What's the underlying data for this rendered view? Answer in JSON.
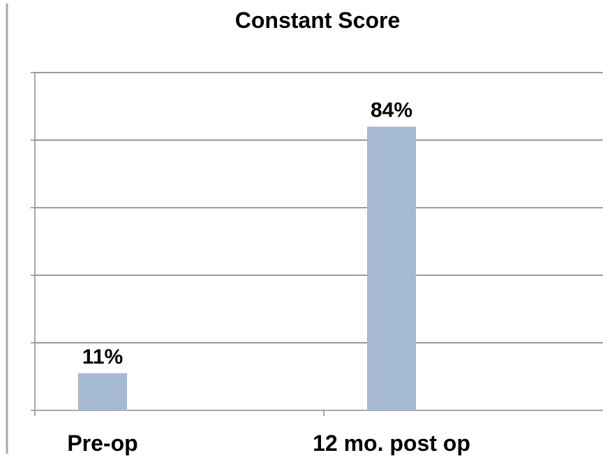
{
  "chart_data": {
    "type": "bar",
    "title": "Constant Score",
    "categories": [
      "Pre-op",
      "12 mo. post op"
    ],
    "values": [
      11,
      84
    ],
    "data_labels": [
      "11%",
      "84%"
    ],
    "ylim": [
      0,
      100
    ],
    "y_gridlines": [
      0,
      20,
      40,
      60,
      80,
      100
    ],
    "grid": true,
    "legend": "none",
    "bar_color": "#a6b9d2",
    "gridline_color": "#7a7a7a",
    "axis_color": "#8c8c8c"
  }
}
